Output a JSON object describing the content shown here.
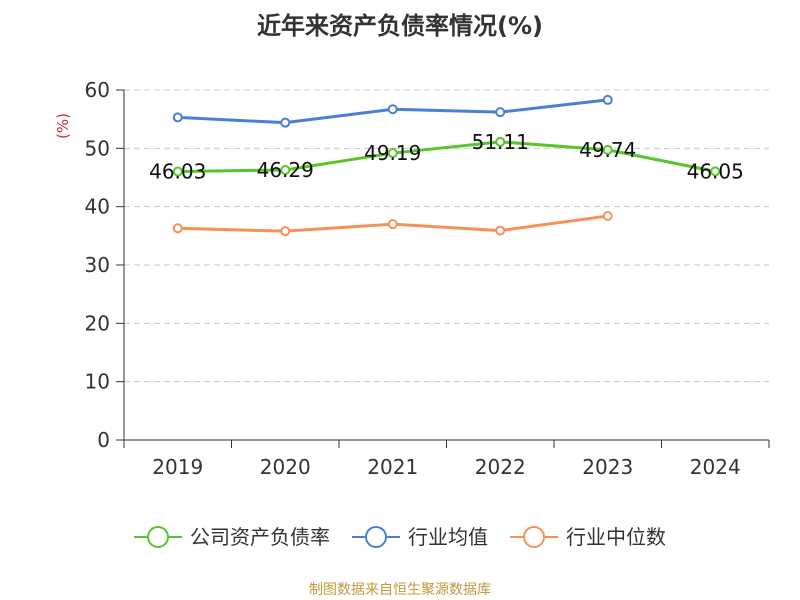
{
  "chart_data": {
    "type": "line",
    "title": "近年来资产负债率情况(%)",
    "ylabel": "(%)",
    "ylim": [
      0,
      60
    ],
    "y_ticks": [
      0,
      10,
      20,
      30,
      40,
      50,
      60
    ],
    "grid": true,
    "legend_position": "bottom",
    "categories": [
      "2019",
      "2020",
      "2021",
      "2022",
      "2023",
      "2024"
    ],
    "series": [
      {
        "name": "公司资产负债率",
        "color": "#5ac52a",
        "values": [
          46.03,
          46.29,
          49.19,
          51.11,
          49.74,
          46.05
        ],
        "labels": [
          "46.03",
          "46.29",
          "49.19",
          "51.11",
          "49.74",
          "46.05"
        ],
        "show_labels": true
      },
      {
        "name": "行业均值",
        "color": "#4a7fd4",
        "values": [
          55.3,
          54.4,
          56.7,
          56.2,
          58.3,
          null
        ],
        "show_labels": false
      },
      {
        "name": "行业中位数",
        "color": "#f5915a",
        "values": [
          36.3,
          35.8,
          37.0,
          35.9,
          38.4,
          null
        ],
        "show_labels": false
      }
    ],
    "source": "制图数据来自恒生聚源数据库",
    "unit_color": "#d42a2a",
    "source_color": "#c39a3c",
    "grid_color": "#c8c8c8",
    "axis_color": "#333333"
  }
}
